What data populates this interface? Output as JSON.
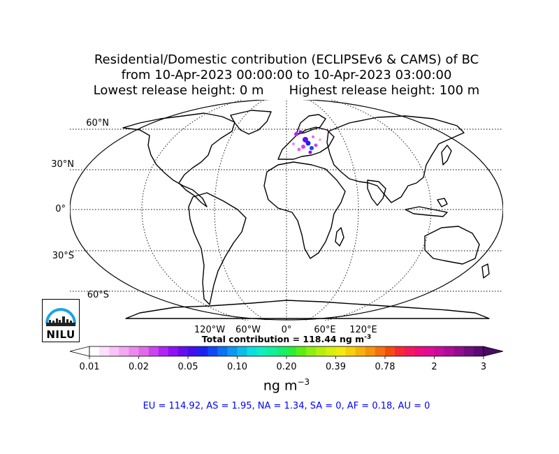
{
  "title": {
    "line1": "Residential/Domestic contribution (ECLIPSEv6 & CAMS) of BC",
    "line2": "from 10-Apr-2023 00:00:00 to 10-Apr-2023 03:00:00",
    "line3_left": "Lowest release height: 0 m",
    "line3_right": "Highest release height: 100 m"
  },
  "map": {
    "projection": "Robinson",
    "lat_labels": [
      "60°N",
      "30°N",
      "0°",
      "30°S",
      "60°S"
    ],
    "lon_labels": [
      "120°W",
      "60°W",
      "0°",
      "60°E",
      "120°E"
    ],
    "plume_region": "Europe"
  },
  "total": {
    "text": "Total contribution = 118.44 ng m",
    "exp": "-3"
  },
  "colorbar": {
    "tick_labels": [
      "0.01",
      "0.02",
      "0.05",
      "0.10",
      "0.20",
      "0.39",
      "0.78",
      "2",
      "3"
    ],
    "unit_text": "ng m",
    "unit_exp": "−3",
    "colors": [
      "#ffffff",
      "#fde0fd",
      "#f9c4f9",
      "#f3a8f3",
      "#ec8aec",
      "#e06be8",
      "#cc44f0",
      "#b024f5",
      "#8f10f6",
      "#6a0cf0",
      "#4210f0",
      "#1c22f0",
      "#0f49f6",
      "#0a72f4",
      "#0c98f1",
      "#0cbde8",
      "#0adfdf",
      "#0cf0c0",
      "#10f09a",
      "#16ee70",
      "#2aee3c",
      "#5cee14",
      "#8cf00c",
      "#b4f00c",
      "#d6f00c",
      "#f0ec0c",
      "#f6d00c",
      "#f6b20c",
      "#f6940c",
      "#f6700c",
      "#f64a12",
      "#f62a34",
      "#f6185c",
      "#f00c80",
      "#e00c98",
      "#c80c9e",
      "#ae0c9a",
      "#920c90",
      "#740a84",
      "#5a0a74"
    ],
    "extend_min_color": "#ffffff",
    "extend_max_color": "#4a0a66"
  },
  "stats": "EU = 114.92,  AS = 1.95,  NA = 1.34,  SA = 0,  AF = 0.18,  AU = 0",
  "logo": {
    "text": "NILU"
  }
}
